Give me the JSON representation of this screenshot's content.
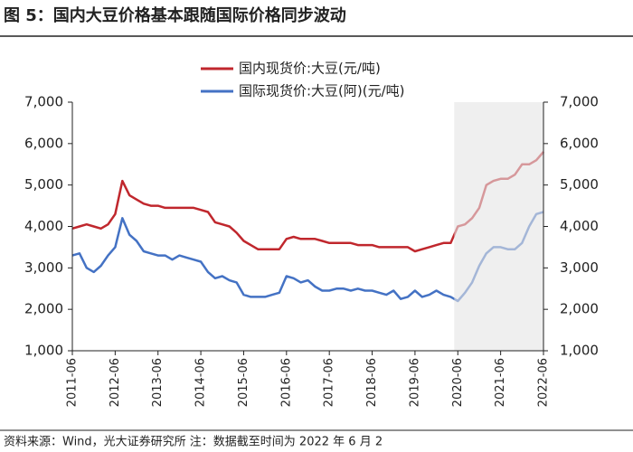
{
  "chart_data": {
    "type": "line",
    "title": "图 5：国内大豆价格基本跟随国际价格同步波动",
    "note": "资料来源：Wind，光大证券研究所  注：数据截至时间为 2022 年 6 月 2",
    "x": [
      "2011-06",
      "2011-08",
      "2011-10",
      "2011-12",
      "2012-02",
      "2012-04",
      "2012-06",
      "2012-08",
      "2012-10",
      "2012-12",
      "2013-02",
      "2013-04",
      "2013-06",
      "2013-08",
      "2013-10",
      "2013-12",
      "2014-02",
      "2014-04",
      "2014-06",
      "2014-08",
      "2014-10",
      "2014-12",
      "2015-02",
      "2015-04",
      "2015-06",
      "2015-08",
      "2015-10",
      "2015-12",
      "2016-02",
      "2016-04",
      "2016-06",
      "2016-08",
      "2016-10",
      "2016-12",
      "2017-02",
      "2017-04",
      "2017-06",
      "2017-08",
      "2017-10",
      "2017-12",
      "2018-02",
      "2018-04",
      "2018-06",
      "2018-08",
      "2018-10",
      "2018-12",
      "2019-02",
      "2019-04",
      "2019-06",
      "2019-08",
      "2019-10",
      "2019-12",
      "2020-02",
      "2020-04",
      "2020-06",
      "2020-08",
      "2020-10",
      "2020-12",
      "2021-02",
      "2021-04",
      "2021-06",
      "2021-08",
      "2021-10",
      "2021-12",
      "2022-02",
      "2022-04",
      "2022-06"
    ],
    "series": [
      {
        "name": "国内现货价:大豆(元/吨)",
        "color": "#c0272d",
        "values": [
          3950,
          4000,
          4050,
          4000,
          3950,
          4050,
          4300,
          5100,
          4750,
          4650,
          4550,
          4500,
          4500,
          4450,
          4450,
          4450,
          4450,
          4450,
          4400,
          4350,
          4100,
          4050,
          4000,
          3850,
          3650,
          3550,
          3450,
          3450,
          3450,
          3450,
          3700,
          3750,
          3700,
          3700,
          3700,
          3650,
          3600,
          3600,
          3600,
          3600,
          3550,
          3550,
          3550,
          3500,
          3500,
          3500,
          3500,
          3500,
          3400,
          3450,
          3500,
          3550,
          3600,
          3600,
          4000,
          4050,
          4200,
          4450,
          5000,
          5100,
          5150,
          5150,
          5250,
          5500,
          5500,
          5600,
          5800
        ]
      },
      {
        "name": "国际现货价:大豆(阿)(元/吨)",
        "color": "#4472c4",
        "values": [
          3300,
          3350,
          3000,
          2900,
          3050,
          3300,
          3500,
          4200,
          3800,
          3650,
          3400,
          3350,
          3300,
          3300,
          3200,
          3300,
          3250,
          3200,
          3150,
          2900,
          2750,
          2800,
          2700,
          2650,
          2350,
          2300,
          2300,
          2300,
          2350,
          2400,
          2800,
          2750,
          2650,
          2700,
          2550,
          2450,
          2450,
          2500,
          2500,
          2450,
          2500,
          2450,
          2450,
          2400,
          2350,
          2450,
          2250,
          2300,
          2450,
          2300,
          2350,
          2450,
          2350,
          2300,
          2200,
          2400,
          2650,
          3050,
          3350,
          3500,
          3500,
          3450,
          3450,
          3600,
          4000,
          4300,
          4350
        ]
      }
    ],
    "xlim": [
      "2011-06",
      "2022-06"
    ],
    "xticks": [
      "2011-06",
      "2012-06",
      "2013-06",
      "2014-06",
      "2015-06",
      "2016-06",
      "2017-06",
      "2018-06",
      "2019-06",
      "2020-06",
      "2021-06",
      "2022-06"
    ],
    "ylim": [
      1000,
      7000
    ],
    "yticks": [
      {
        "value": 1000,
        "label": "1,000"
      },
      {
        "value": 2000,
        "label": "2,000"
      },
      {
        "value": 3000,
        "label": "3,000"
      },
      {
        "value": 4000,
        "label": "4,000"
      },
      {
        "value": 5000,
        "label": "5,000"
      },
      {
        "value": 6000,
        "label": "6,000"
      },
      {
        "value": 7000,
        "label": "7,000"
      }
    ],
    "y2lim": [
      1000,
      7000
    ],
    "y2ticks": [
      {
        "value": 1000,
        "label": "1,000"
      },
      {
        "value": 2000,
        "label": "2,000"
      },
      {
        "value": 3000,
        "label": "3,000"
      },
      {
        "value": 4000,
        "label": "4,000"
      },
      {
        "value": 5000,
        "label": "5,000"
      },
      {
        "value": 6000,
        "label": "6,000"
      },
      {
        "value": 7000,
        "label": "7,000"
      }
    ],
    "shade": [
      "2020-05",
      "2022-06"
    ],
    "shade_color": "#e4e4e4"
  }
}
